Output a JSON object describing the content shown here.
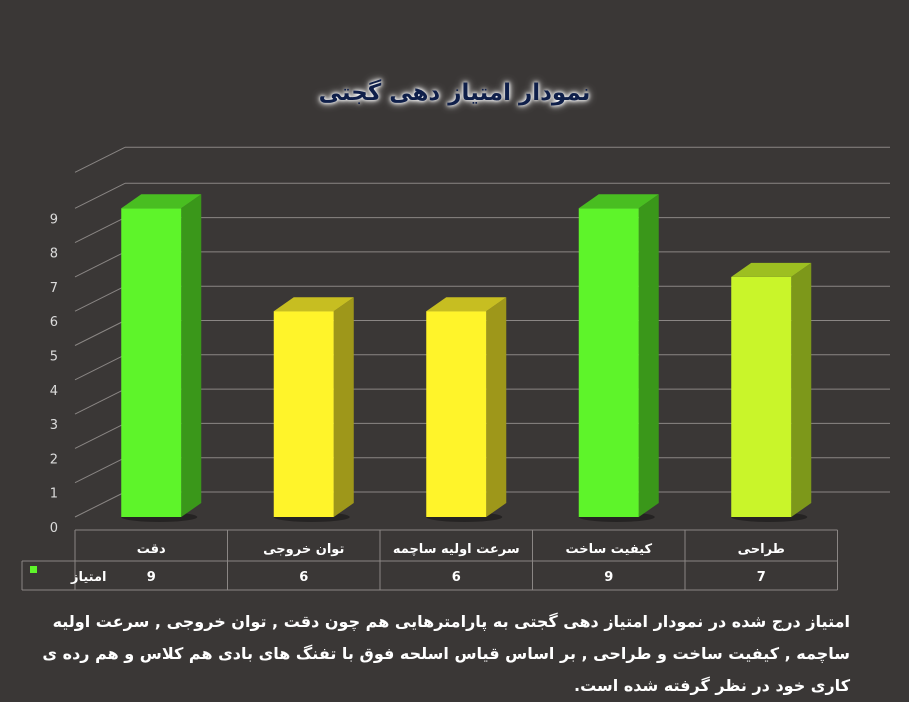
{
  "chart_data": {
    "type": "bar",
    "title": "نمودار امتیاز دهی گجتی",
    "categories": [
      "دقت",
      "توان خروجی",
      "سرعت اولیه ساچمه",
      "کیفیت ساخت",
      "طراحی"
    ],
    "series": [
      {
        "name": "امتیاز",
        "values": [
          9,
          6,
          6,
          9,
          7
        ]
      }
    ],
    "ylim": [
      0,
      9
    ],
    "yticks": [
      "0",
      "1",
      "2",
      "3",
      "4",
      "5",
      "6",
      "7",
      "8",
      "9"
    ],
    "grid": true,
    "legend_placement": "data-table-left",
    "colors": {
      "high": "#5ef42a",
      "mid": "#fff42a",
      "seven": "#c9f52a",
      "background": "#3a3736",
      "title": "#0f1f4a"
    }
  },
  "caption": "امتیاز درج شده در نمودار امتیاز دهی گجتی به پارامترهایی هم چون دقت , توان خروجی , سرعت اولیه ساچمه , کیفیت ساخت و طراحی , بر اساس قیاس اسلحه فوق با تفنگ های بادی هم کلاس و هم رده ی کاری خود در نظر گرفته شده است."
}
